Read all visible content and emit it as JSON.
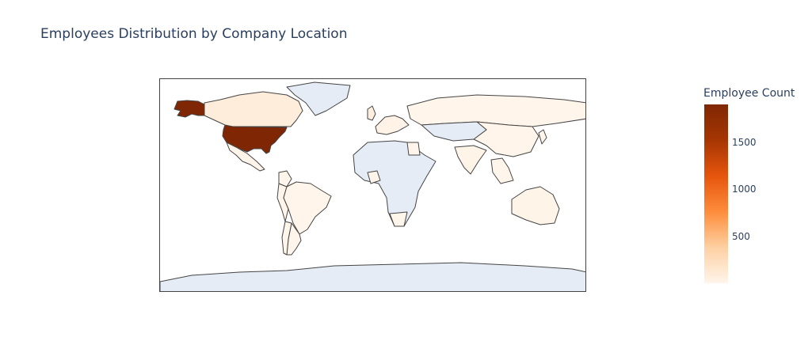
{
  "title": "Employees Distribution by Company Location",
  "map": {
    "projection": "equirectangular",
    "no_data_color": "#e5ecf6",
    "border_color": "#444444",
    "regions": [
      {
        "name": "United States",
        "value": 1900
      },
      {
        "name": "Alaska (United States)",
        "value": 1900
      },
      {
        "name": "Canada",
        "value": 80
      },
      {
        "name": "Mexico",
        "value": 10
      },
      {
        "name": "Greenland",
        "value": null
      },
      {
        "name": "Brazil",
        "value": 5
      },
      {
        "name": "Argentina",
        "value": 5
      },
      {
        "name": "Colombia",
        "value": 3
      },
      {
        "name": "Chile",
        "value": 2
      },
      {
        "name": "United Kingdom",
        "value": 60
      },
      {
        "name": "Western Europe",
        "value": 20
      },
      {
        "name": "Russia",
        "value": 2
      },
      {
        "name": "India",
        "value": 15
      },
      {
        "name": "China",
        "value": 3
      },
      {
        "name": "Central Asia",
        "value": null
      },
      {
        "name": "Africa",
        "value": null
      },
      {
        "name": "Nigeria",
        "value": 3
      },
      {
        "name": "Egypt",
        "value": 2
      },
      {
        "name": "South Africa",
        "value": 3
      },
      {
        "name": "Australia",
        "value": 15
      },
      {
        "name": "Japan",
        "value": 5
      },
      {
        "name": "Southeast Asia",
        "value": 3
      },
      {
        "name": "Antarctica",
        "value": null
      }
    ]
  },
  "colorbar": {
    "title": "Employee Count",
    "min": 0,
    "max": 1900,
    "colorscale": [
      "#fff5eb",
      "#fdd0a2",
      "#fd8d3c",
      "#e6550d",
      "#a63603",
      "#7f2704"
    ],
    "ticks": [
      {
        "value": 500,
        "label": "500"
      },
      {
        "value": 1000,
        "label": "1000"
      },
      {
        "value": 1500,
        "label": "1500"
      }
    ]
  }
}
